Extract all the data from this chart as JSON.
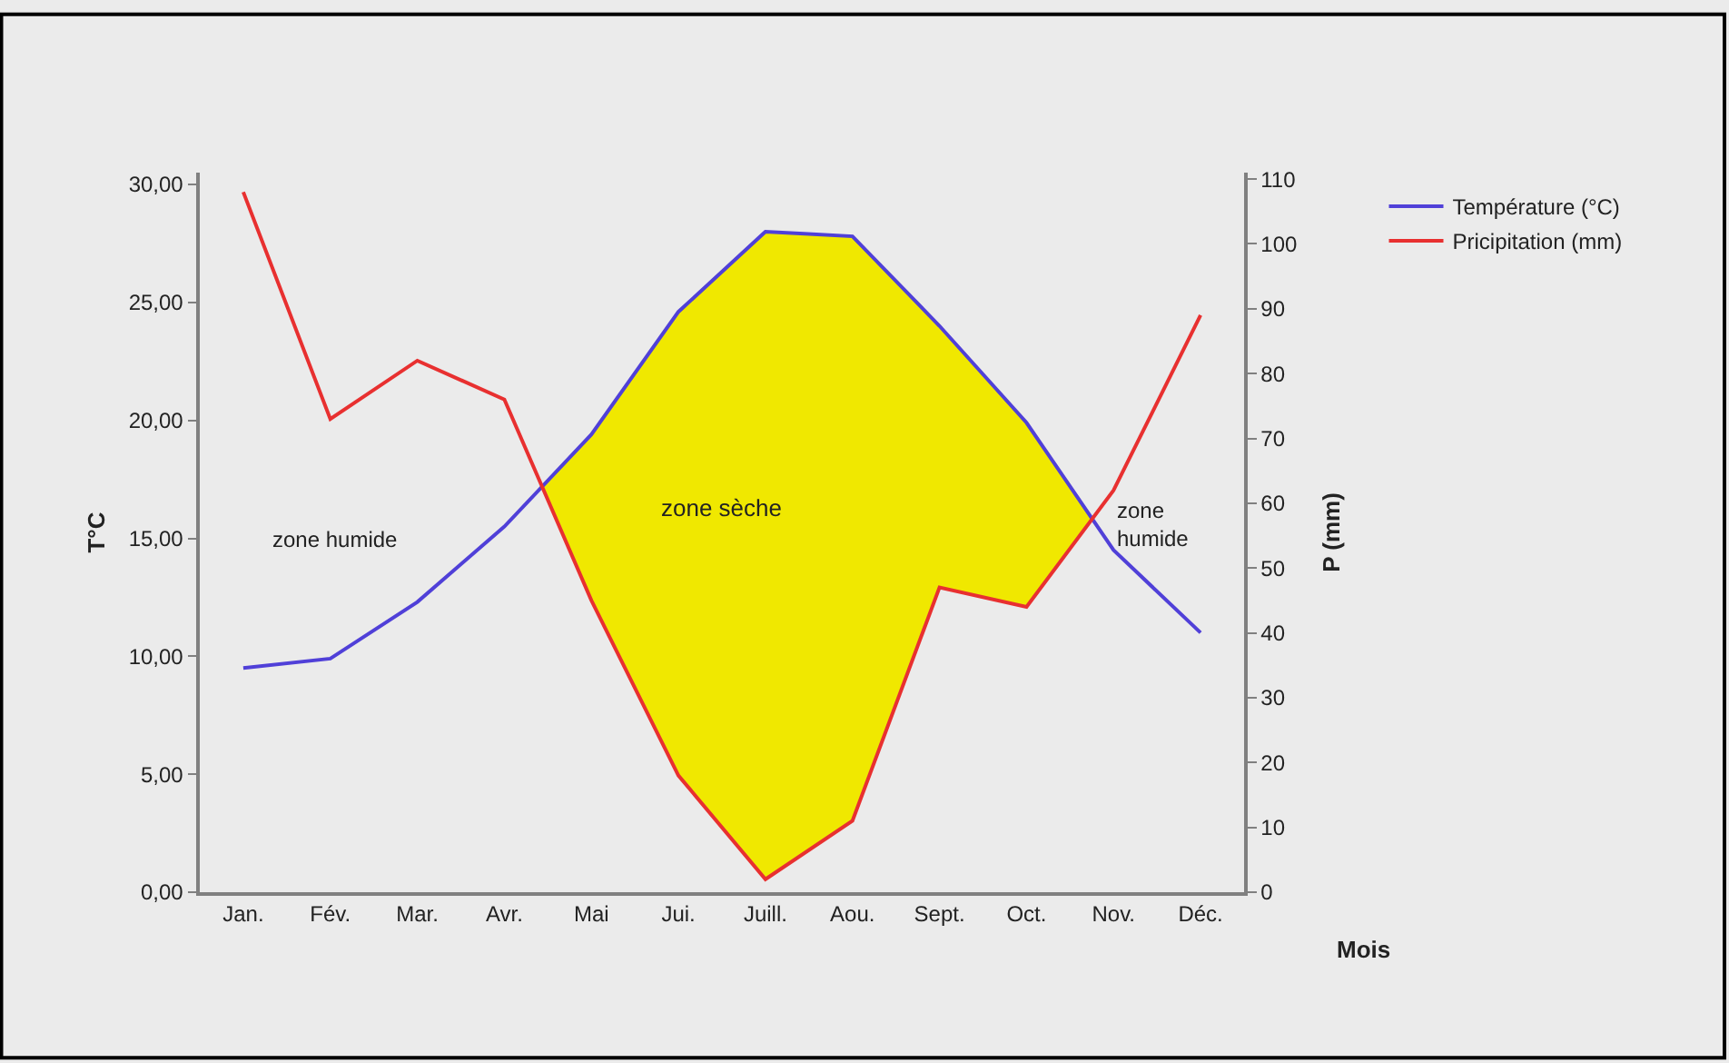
{
  "chart_data": {
    "type": "line",
    "categories": [
      "Jan.",
      "Fév.",
      "Mar.",
      "Avr.",
      "Mai",
      "Jui.",
      "Juill.",
      "Aou.",
      "Sept.",
      "Oct.",
      "Nov.",
      "Déc."
    ],
    "series": [
      {
        "name": "Température (°C)",
        "color": "#5040d8",
        "values": [
          9.5,
          9.9,
          12.3,
          15.5,
          19.4,
          24.6,
          28.0,
          27.8,
          24.0,
          19.9,
          14.5,
          11.0
        ]
      },
      {
        "name": "Pricipitation (mm)",
        "color": "#e83030",
        "axis": "y2",
        "values": [
          108,
          73,
          82,
          76,
          45,
          18,
          2,
          11,
          47,
          44,
          62,
          89
        ]
      }
    ],
    "xlabel": "Mois",
    "ylabel": "T°C",
    "y2label": "P (mm)",
    "ylim": [
      0,
      30.5
    ],
    "yticks": [
      {
        "value": 0,
        "label": "0,00"
      },
      {
        "value": 5,
        "label": "5,00"
      },
      {
        "value": 10,
        "label": "10,00"
      },
      {
        "value": 15,
        "label": "15,00"
      },
      {
        "value": 20,
        "label": "20,00"
      },
      {
        "value": 25,
        "label": "25,00"
      },
      {
        "value": 30,
        "label": "30,00"
      }
    ],
    "y2lim": [
      0,
      111
    ],
    "y2ticks": [
      0,
      10,
      20,
      30,
      40,
      50,
      60,
      70,
      80,
      90,
      100,
      110
    ],
    "annotations": [
      "zone humide",
      "zone sèche",
      "zone\nhumide"
    ],
    "legend": "top right",
    "grid": false,
    "marker": "none",
    "line_style": "solid"
  }
}
